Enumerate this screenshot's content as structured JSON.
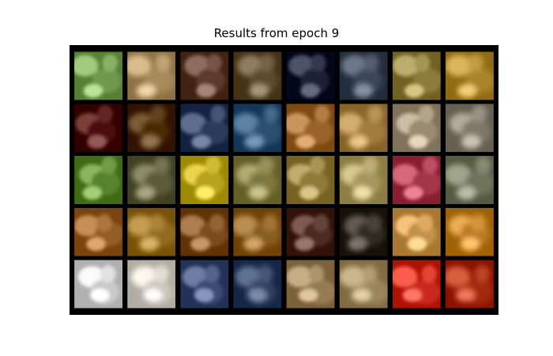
{
  "figure": {
    "title": "Results from epoch 9"
  },
  "grid": {
    "rows": 5,
    "cols": 8,
    "tiles": [
      [
        "#7fa85a",
        "#b59a6a",
        "#6a4a3a",
        "#6d5a3c",
        "#2b2f44",
        "#4a5565",
        "#9a8a4a",
        "#b8933a"
      ],
      [
        "#5a1d16",
        "#5a3a12",
        "#3a4a6a",
        "#3a5f80",
        "#a7723a",
        "#b08b4f",
        "#a99a82",
        "#8f877a"
      ],
      [
        "#68923c",
        "#6b6a48",
        "#c7b22b",
        "#8d8750",
        "#9e8a4a",
        "#b6a56b",
        "#b3455a",
        "#7d8269"
      ],
      [
        "#a16c35",
        "#a17a2f",
        "#8a5a2a",
        "#976a2c",
        "#5a3a30",
        "#3e3830",
        "#d3a05a",
        "#c88a2f"
      ],
      [
        "#d8d8d8",
        "#d9d4cc",
        "#4a5a80",
        "#3d4f6f",
        "#a38a63",
        "#a9946a",
        "#d83a2a",
        "#b43a1a"
      ]
    ]
  }
}
